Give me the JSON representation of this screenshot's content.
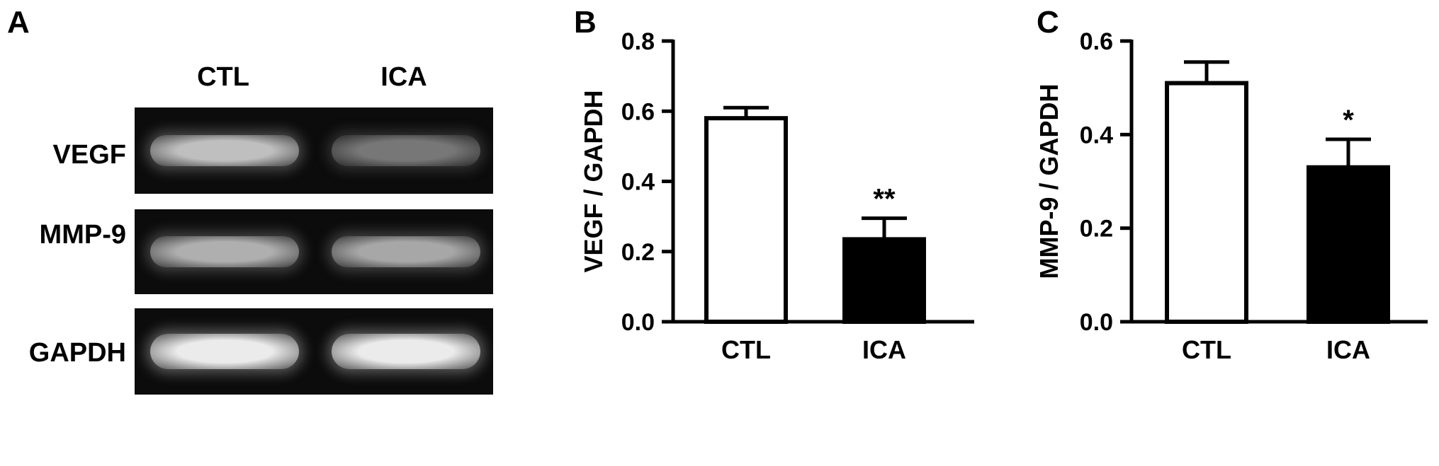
{
  "panels": {
    "a": {
      "letter": "A",
      "lanes": [
        "CTL",
        "ICA"
      ],
      "rows": [
        {
          "label": "VEGF",
          "intensity": [
            0.78,
            0.42
          ]
        },
        {
          "label": "MMP-9",
          "intensity": [
            0.7,
            0.66
          ]
        },
        {
          "label": "GAPDH",
          "intensity": [
            1.0,
            1.0
          ]
        }
      ]
    },
    "b": {
      "letter": "B"
    },
    "c": {
      "letter": "C"
    }
  },
  "chart_data": [
    {
      "type": "bar",
      "panel": "B",
      "categories": [
        "CTL",
        "ICA"
      ],
      "values": [
        0.58,
        0.235
      ],
      "errors": [
        0.03,
        0.06
      ],
      "bar_fill": [
        "#ffffff",
        "#000000"
      ],
      "annotations": [
        "",
        "**"
      ],
      "ylabel": "VEGF / GAPDH",
      "ylim": [
        0,
        0.8
      ],
      "yticks": [
        "0.0",
        "0.2",
        "0.4",
        "0.6",
        "0.8"
      ],
      "ytick_values": [
        0,
        0.2,
        0.4,
        0.6,
        0.8
      ]
    },
    {
      "type": "bar",
      "panel": "C",
      "categories": [
        "CTL",
        "ICA"
      ],
      "values": [
        0.51,
        0.33
      ],
      "errors": [
        0.045,
        0.06
      ],
      "bar_fill": [
        "#ffffff",
        "#000000"
      ],
      "annotations": [
        "",
        "*"
      ],
      "ylabel": "MMP-9 / GAPDH",
      "ylim": [
        0,
        0.6
      ],
      "yticks": [
        "0.0",
        "0.2",
        "0.4",
        "0.6"
      ],
      "ytick_values": [
        0,
        0.2,
        0.4,
        0.6
      ]
    }
  ]
}
